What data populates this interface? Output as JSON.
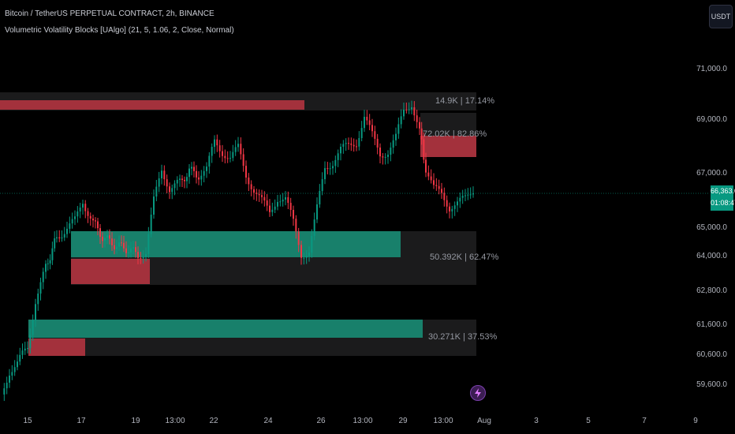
{
  "legend": {
    "symbol_line": "Bitcoin / TetherUS PERPETUAL CONTRACT, 2h, BINANCE",
    "indicator_line": "Volumetric Volatility Blocks [UAlgo] (21, 5, 1.06, 2, Close, Normal)"
  },
  "currency_button": "USDT",
  "price_tag": {
    "price": "66,363.0",
    "countdown": "01:08:47"
  },
  "y_axis_labels": [
    "71,000.0",
    "69,000.0",
    "67,000.0",
    "65,000.0",
    "64,000.0",
    "62,800.0",
    "61,600.0",
    "60,600.0",
    "59,600.0"
  ],
  "x_axis_labels": [
    "15",
    "17",
    "19",
    "13:00",
    "22",
    "24",
    "26",
    "13:00",
    "29",
    "13:00",
    "Aug",
    "3",
    "5",
    "7",
    "9"
  ],
  "block_labels": {
    "top": "14.9K | 17.14%",
    "upper_mid": "72.02K | 82.86%",
    "middle": "50.392K | 62.47%",
    "bottom": "30.271K | 37.53%"
  },
  "colors": {
    "up": "#089981",
    "down": "#f23645",
    "bear_block": "#a3313c",
    "bull_block": "#18806b",
    "box_bg": "#1b1b1c"
  }
}
